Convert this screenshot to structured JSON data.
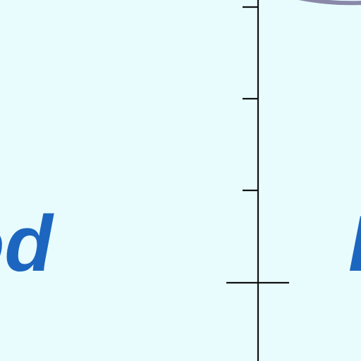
{
  "colors": {
    "background": "#e8fcfe",
    "axis": "#111111",
    "label": "#1c66c0",
    "curve": "#8a88a8"
  },
  "labels": {
    "left": "od",
    "right": "I"
  }
}
